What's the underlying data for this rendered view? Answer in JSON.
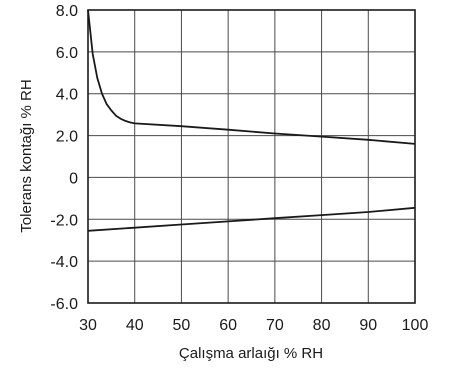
{
  "chart_data": {
    "type": "line",
    "title": "",
    "xlabel": "Çalışma arlaığı % RH",
    "ylabel": "Tolerans kontağı  % RH",
    "xlim": [
      30,
      100
    ],
    "ylim": [
      -6,
      8
    ],
    "grid": true,
    "x_ticks": [
      30,
      40,
      50,
      60,
      70,
      80,
      90,
      100
    ],
    "x_tick_labels": [
      "30",
      "40",
      "50",
      "60",
      "70",
      "80",
      "90",
      "100"
    ],
    "y_ticks": [
      8,
      6,
      4,
      2,
      0,
      -2,
      -4,
      -6
    ],
    "y_tick_labels": [
      "8.0",
      "6.0",
      "4.0",
      "2.0",
      "0",
      "-2.0",
      "-4.0",
      "-6.0"
    ],
    "series": [
      {
        "x": [
          30,
          31,
          32,
          33,
          34,
          35,
          36,
          37,
          38,
          39,
          40,
          50,
          60,
          70,
          80,
          90,
          100
        ],
        "y": [
          8.0,
          5.9,
          4.75,
          4.0,
          3.5,
          3.2,
          2.95,
          2.8,
          2.7,
          2.63,
          2.58,
          2.45,
          2.28,
          2.1,
          1.95,
          1.8,
          1.6
        ]
      },
      {
        "x": [
          30,
          40,
          50,
          60,
          70,
          80,
          90,
          100
        ],
        "y": [
          -2.55,
          -2.4,
          -2.25,
          -2.1,
          -1.95,
          -1.8,
          -1.65,
          -1.45
        ]
      }
    ]
  }
}
